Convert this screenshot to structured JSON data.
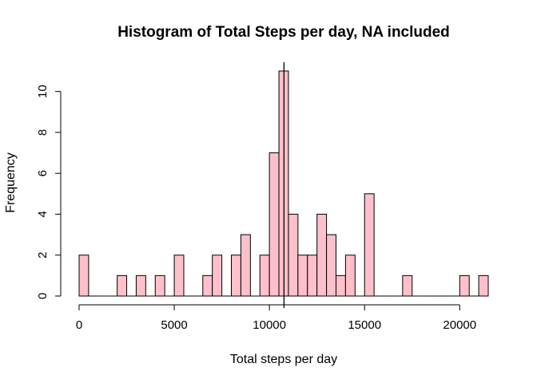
{
  "chart_data": {
    "type": "bar",
    "title": "Histogram of Total Steps per day, NA included",
    "xlabel": "Total steps per day",
    "ylabel": "Frequency",
    "bin_width": 500,
    "bin_start": 0,
    "bin_end": 21500,
    "counts": [
      2,
      0,
      0,
      0,
      1,
      0,
      1,
      0,
      1,
      0,
      2,
      0,
      0,
      1,
      2,
      0,
      2,
      3,
      0,
      2,
      7,
      11,
      4,
      2,
      2,
      4,
      3,
      1,
      2,
      0,
      5,
      0,
      0,
      0,
      1,
      0,
      0,
      0,
      0,
      0,
      1,
      0,
      1
    ],
    "xlim": [
      0,
      21500
    ],
    "ylim": [
      0,
      11
    ],
    "x_ticks": [
      0,
      5000,
      10000,
      15000,
      20000
    ],
    "y_ticks": [
      0,
      2,
      4,
      6,
      8,
      10
    ],
    "reference_line_x": 10766,
    "colors": {
      "bar_fill": "#FFC0CB",
      "bar_stroke": "#000000",
      "line": "#000000"
    }
  }
}
